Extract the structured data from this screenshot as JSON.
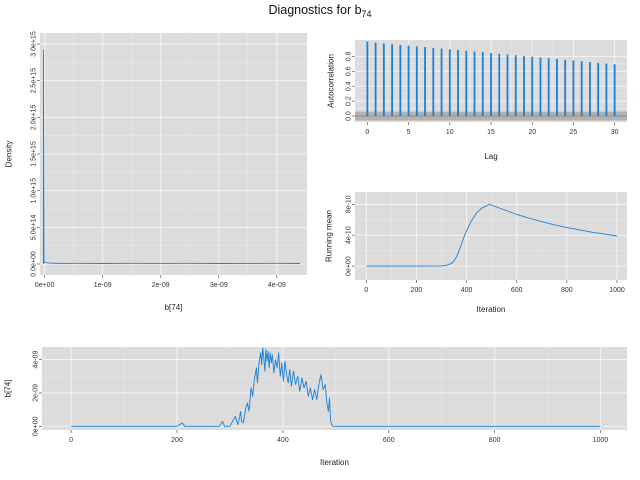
{
  "title": {
    "text": "Diagnostics for b",
    "subscript": "74"
  },
  "theme": {
    "panel_bg": "#dcdcdc",
    "grid_major": "#f4f4f4",
    "grid_minor": "#e8e8e8",
    "series_color": "#1a80d8",
    "ci_band": "#aaaaaa"
  },
  "chart_data": [
    {
      "id": "density",
      "type": "line",
      "xlabel": "b[74]",
      "ylabel": "Density",
      "xlim": [
        -8e-11,
        4.52e-09
      ],
      "ylim": [
        -150000000000000.0,
        3150000000000000.0
      ],
      "xticks": [
        0,
        1e-09,
        2e-09,
        3e-09,
        4e-09
      ],
      "xtick_labels": [
        "0e+00",
        "1e-09",
        "2e-09",
        "3e-09",
        "4e-09"
      ],
      "yticks": [
        0,
        500000000000000.0,
        1000000000000000.0,
        1500000000000000.0,
        2000000000000000.0,
        2500000000000000.0,
        3000000000000000.0
      ],
      "ytick_labels": [
        "0.0e+00",
        "5.0e+14",
        "1.0e+15",
        "1.5e+15",
        "2.0e+15",
        "2.5e+15",
        "3.0e+15"
      ],
      "grid": true,
      "series": [
        {
          "x": [
            -2e-11,
            -2e-11,
            -1e-11,
            0.0,
            5e-11,
            1e-10,
            3e-10,
            6e-10,
            1e-09,
            1.5e-09,
            2e-09,
            2.5e-09,
            3e-09,
            3.5e-09,
            4e-09,
            4.4e-09
          ],
          "y": [
            0.0,
            2920000000000000.0,
            50000000000000.0,
            20000000000000.0,
            15000000000000.0,
            12000000000000.0,
            8000000000000.0,
            10000000000000.0,
            7000000000000.0,
            9000000000000.0,
            8000000000000.0,
            10000000000000.0,
            7000000000000.0,
            8000000000000.0,
            9000000000000.0,
            7000000000000.0
          ]
        }
      ]
    },
    {
      "id": "autocorrelation",
      "type": "bar",
      "xlabel": "Lag",
      "ylabel": "Autocorrelation",
      "xlim": [
        -1.5,
        31.5
      ],
      "ylim": [
        -0.08,
        1.02
      ],
      "xticks": [
        0,
        5,
        10,
        15,
        20,
        25,
        30
      ],
      "xtick_labels": [
        "0",
        "5",
        "10",
        "15",
        "20",
        "25",
        "30"
      ],
      "yticks": [
        0.0,
        0.2,
        0.4,
        0.6,
        0.8
      ],
      "ytick_labels": [
        "0.0",
        "0.2",
        "0.4",
        "0.6",
        "0.8"
      ],
      "ci_band": [
        -0.06,
        0.06
      ],
      "grid": true,
      "series": [
        {
          "x": [
            0,
            1,
            2,
            3,
            4,
            5,
            6,
            7,
            8,
            9,
            10,
            11,
            12,
            13,
            14,
            15,
            16,
            17,
            18,
            19,
            20,
            21,
            22,
            23,
            24,
            25,
            26,
            27,
            28,
            29,
            30
          ],
          "values": [
            1.0,
            0.985,
            0.975,
            0.965,
            0.955,
            0.945,
            0.935,
            0.925,
            0.915,
            0.905,
            0.895,
            0.885,
            0.875,
            0.865,
            0.855,
            0.845,
            0.835,
            0.825,
            0.815,
            0.805,
            0.795,
            0.785,
            0.775,
            0.765,
            0.755,
            0.745,
            0.735,
            0.725,
            0.715,
            0.705,
            0.695
          ]
        }
      ]
    },
    {
      "id": "running_mean",
      "type": "line",
      "xlabel": "Iteration",
      "ylabel": "Running mean",
      "xlim": [
        -45,
        1040
      ],
      "ylim": [
        -1.8e-10,
        9.6e-10
      ],
      "xticks": [
        0,
        200,
        400,
        600,
        800,
        1000
      ],
      "xtick_labels": [
        "0",
        "200",
        "400",
        "600",
        "800",
        "1000"
      ],
      "yticks": [
        0,
        4e-10,
        8e-10
      ],
      "ytick_labels": [
        "0e+00",
        "4e-10",
        "8e-10"
      ],
      "grid": true,
      "series": [
        {
          "x": [
            0,
            100,
            200,
            300,
            320,
            340,
            350,
            360,
            370,
            380,
            390,
            400,
            420,
            440,
            460,
            480,
            490,
            500,
            550,
            600,
            650,
            700,
            750,
            800,
            850,
            900,
            950,
            1000
          ],
          "y": [
            0,
            0,
            0,
            2e-12,
            1e-11,
            3.5e-11,
            7e-11,
            1.2e-10,
            2e-10,
            2.9e-10,
            3.8e-10,
            4.6e-10,
            5.9e-10,
            6.9e-10,
            7.5e-10,
            7.8e-10,
            8e-10,
            7.9e-10,
            7.3e-10,
            6.7e-10,
            6.2e-10,
            5.75e-10,
            5.35e-10,
            5e-10,
            4.7e-10,
            4.4e-10,
            4.15e-10,
            3.9e-10
          ]
        }
      ]
    },
    {
      "id": "trace",
      "type": "line",
      "xlabel": "Iteration",
      "ylabel": "b[74]",
      "xlim": [
        -55,
        1050
      ],
      "ylim": [
        -2.2e-10,
        4.75e-09
      ],
      "xticks": [
        0,
        200,
        400,
        600,
        800,
        1000
      ],
      "xtick_labels": [
        "0",
        "200",
        "400",
        "600",
        "800",
        "1000"
      ],
      "yticks": [
        0,
        2e-09,
        4e-09
      ],
      "ytick_labels": [
        "0e+00",
        "2e-09",
        "4e-09"
      ],
      "grid": true,
      "series": [
        {
          "x": [
            0,
            200,
            205,
            210,
            215,
            280,
            283,
            286,
            290,
            300,
            305,
            310,
            315,
            318,
            320,
            322,
            325,
            328,
            330,
            333,
            336,
            340,
            343,
            346,
            350,
            352,
            355,
            358,
            360,
            362,
            364,
            366,
            368,
            370,
            372,
            374,
            376,
            378,
            380,
            383,
            386,
            389,
            392,
            395,
            398,
            401,
            404,
            407,
            410,
            413,
            416,
            420,
            424,
            428,
            432,
            436,
            440,
            444,
            448,
            452,
            456,
            460,
            464,
            468,
            472,
            476,
            480,
            483,
            486,
            488,
            490,
            492,
            495,
            500,
            600,
            700,
            800,
            900,
            1000
          ],
          "y": [
            0,
            0,
            1e-10,
            2e-10,
            0,
            0,
            1.5e-10,
            3e-10,
            0,
            0,
            3e-10,
            6e-10,
            1e-10,
            5e-10,
            9e-10,
            3e-10,
            2e-10,
            7e-10,
            1.1e-09,
            1.4e-09,
            9e-10,
            2.3e-09,
            1.8e-09,
            2.8e-09,
            3.5e-09,
            2.6e-09,
            3.8e-09,
            4.4e-09,
            3.7e-09,
            4.7e-09,
            4.1e-09,
            3.3e-09,
            4.6e-09,
            3.9e-09,
            4.5e-09,
            3.5e-09,
            4.4e-09,
            3.8e-09,
            4.3e-09,
            3.2e-09,
            4e-09,
            3.5e-09,
            4.4e-09,
            3e-09,
            3.8e-09,
            2.7e-09,
            3.9e-09,
            3.1e-09,
            2.6e-09,
            3.4e-09,
            2.4e-09,
            3.3e-09,
            2.5e-09,
            3e-09,
            2.1e-09,
            2.9e-09,
            2.3e-09,
            2.7e-09,
            1.8e-09,
            2.3e-09,
            1.6e-09,
            2.2e-09,
            1.6e-09,
            2.5e-09,
            3.1e-09,
            2.2e-09,
            2.5e-09,
            1.4e-09,
            9e-10,
            1.7e-09,
            4e-10,
            1e-10,
            0,
            0,
            0,
            0,
            0,
            0,
            0
          ]
        }
      ]
    }
  ]
}
